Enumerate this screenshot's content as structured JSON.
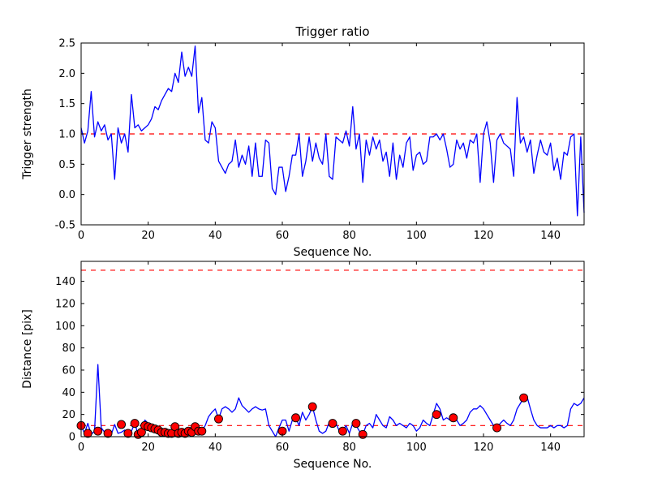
{
  "figure": {
    "background": "#ffffff",
    "axis_color": "#000000"
  },
  "chart_data": [
    {
      "type": "line",
      "name": "trigger-ratio-plot",
      "title": "Trigger ratio",
      "xlabel": "Sequence No.",
      "ylabel": "Trigger strength",
      "xlim": [
        0,
        150
      ],
      "ylim": [
        -0.5,
        2.5
      ],
      "xticks": [
        0,
        20,
        40,
        60,
        80,
        100,
        120,
        140
      ],
      "xticklabels": [
        "0",
        "20",
        "40",
        "60",
        "80",
        "100",
        "120",
        "140"
      ],
      "yticks": [
        -0.5,
        0.0,
        0.5,
        1.0,
        1.5,
        2.0,
        2.5
      ],
      "yticklabels": [
        "-0.5",
        "0.0",
        "0.5",
        "1.0",
        "1.5",
        "2.0",
        "2.5"
      ],
      "grid": false,
      "line_color": "#0000ff",
      "line_name": "trigger-strength-line",
      "threshold_lines": [
        {
          "y": 1.0,
          "color": "#ff0000",
          "style": "dashed"
        }
      ],
      "x_start": 0,
      "x_step": 1,
      "y": [
        1.1,
        0.85,
        1.05,
        1.7,
        0.95,
        1.2,
        1.05,
        1.15,
        0.9,
        1.0,
        0.25,
        1.1,
        0.85,
        1.0,
        0.7,
        1.65,
        1.1,
        1.15,
        1.05,
        1.1,
        1.15,
        1.25,
        1.45,
        1.4,
        1.55,
        1.65,
        1.75,
        1.7,
        2.0,
        1.85,
        2.35,
        1.95,
        2.1,
        1.95,
        2.45,
        1.35,
        1.6,
        0.9,
        0.85,
        1.2,
        1.1,
        0.55,
        0.45,
        0.35,
        0.5,
        0.55,
        0.9,
        0.45,
        0.65,
        0.5,
        0.8,
        0.3,
        0.85,
        0.3,
        0.3,
        0.9,
        0.85,
        0.1,
        0.0,
        0.45,
        0.45,
        0.05,
        0.3,
        0.65,
        0.65,
        1.0,
        0.3,
        0.55,
        0.95,
        0.55,
        0.85,
        0.6,
        0.5,
        1.0,
        0.3,
        0.25,
        0.95,
        0.9,
        0.85,
        1.05,
        0.8,
        1.45,
        0.75,
        1.0,
        0.2,
        0.9,
        0.65,
        0.95,
        0.75,
        0.9,
        0.55,
        0.7,
        0.3,
        0.85,
        0.25,
        0.65,
        0.45,
        0.85,
        0.95,
        0.4,
        0.65,
        0.7,
        0.5,
        0.55,
        0.95,
        0.95,
        1.0,
        0.9,
        1.0,
        0.75,
        0.45,
        0.5,
        0.9,
        0.75,
        0.85,
        0.6,
        0.9,
        0.85,
        1.0,
        0.2,
        1.0,
        1.2,
        0.85,
        0.2,
        0.9,
        1.0,
        0.85,
        0.8,
        0.75,
        0.3,
        1.6,
        0.85,
        0.95,
        0.7,
        0.9,
        0.35,
        0.65,
        0.9,
        0.7,
        0.65,
        0.85,
        0.4,
        0.6,
        0.25,
        0.7,
        0.65,
        0.95,
        1.0,
        -0.35,
        0.95,
        -0.3
      ]
    },
    {
      "type": "line+scatter",
      "name": "distance-plot",
      "title": "",
      "xlabel": "Sequence No.",
      "ylabel": "Distance [pix]",
      "xlim": [
        0,
        150
      ],
      "ylim": [
        0,
        158
      ],
      "xticks": [
        0,
        20,
        40,
        60,
        80,
        100,
        120,
        140
      ],
      "xticklabels": [
        "0",
        "20",
        "40",
        "60",
        "80",
        "100",
        "120",
        "140"
      ],
      "yticks": [
        0,
        20,
        40,
        60,
        80,
        100,
        120,
        140
      ],
      "yticklabels": [
        "0",
        "20",
        "40",
        "60",
        "80",
        "100",
        "120",
        "140"
      ],
      "grid": false,
      "line_color": "#0000ff",
      "line_name": "distance-line",
      "threshold_lines": [
        {
          "y": 150,
          "color": "#ff0000",
          "style": "dashed"
        },
        {
          "y": 10,
          "color": "#ff0000",
          "style": "dashed"
        }
      ],
      "x_start": 0,
      "x_step": 1,
      "y": [
        10,
        3,
        12,
        2,
        5,
        65,
        8,
        4,
        3,
        2,
        11,
        3,
        4,
        6,
        3,
        5,
        12,
        2,
        4,
        15,
        12,
        10,
        9,
        8,
        6,
        4,
        3,
        3,
        10,
        3,
        4,
        3,
        5,
        4,
        10,
        5,
        5,
        10,
        18,
        22,
        25,
        16,
        25,
        27,
        25,
        22,
        25,
        35,
        28,
        25,
        22,
        25,
        27,
        25,
        24,
        25,
        10,
        5,
        0,
        8,
        15,
        15,
        5,
        15,
        17,
        10,
        22,
        15,
        20,
        27,
        15,
        5,
        3,
        5,
        13,
        12,
        12,
        5,
        5,
        10,
        3,
        12,
        10,
        5,
        2,
        10,
        12,
        8,
        20,
        15,
        10,
        8,
        18,
        15,
        10,
        12,
        10,
        8,
        12,
        10,
        5,
        8,
        15,
        12,
        10,
        20,
        30,
        25,
        15,
        17,
        15,
        20,
        15,
        10,
        12,
        15,
        22,
        25,
        25,
        28,
        25,
        20,
        15,
        10,
        8,
        12,
        15,
        12,
        10,
        15,
        25,
        30,
        35,
        36,
        25,
        15,
        10,
        8,
        8,
        8,
        10,
        8,
        10,
        10,
        8,
        10,
        25,
        30,
        28,
        30,
        35
      ],
      "scatter_color": "#ff0000",
      "scatter_name": "trigger-event-markers",
      "scatter": [
        [
          0,
          10
        ],
        [
          2,
          3
        ],
        [
          5,
          5
        ],
        [
          8,
          3
        ],
        [
          12,
          11
        ],
        [
          14,
          3
        ],
        [
          16,
          12
        ],
        [
          17,
          2
        ],
        [
          18,
          4
        ],
        [
          19,
          10
        ],
        [
          20,
          9
        ],
        [
          21,
          8
        ],
        [
          22,
          7
        ],
        [
          23,
          6
        ],
        [
          24,
          4
        ],
        [
          25,
          4
        ],
        [
          26,
          3
        ],
        [
          27,
          3
        ],
        [
          28,
          9
        ],
        [
          29,
          3
        ],
        [
          30,
          4
        ],
        [
          31,
          3
        ],
        [
          32,
          5
        ],
        [
          33,
          4
        ],
        [
          34,
          9
        ],
        [
          35,
          5
        ],
        [
          36,
          5
        ],
        [
          41,
          16
        ],
        [
          60,
          5
        ],
        [
          64,
          17
        ],
        [
          69,
          27
        ],
        [
          75,
          12
        ],
        [
          78,
          5
        ],
        [
          82,
          12
        ],
        [
          84,
          2
        ],
        [
          106,
          20
        ],
        [
          111,
          17
        ],
        [
          124,
          8
        ],
        [
          132,
          35
        ]
      ]
    }
  ]
}
